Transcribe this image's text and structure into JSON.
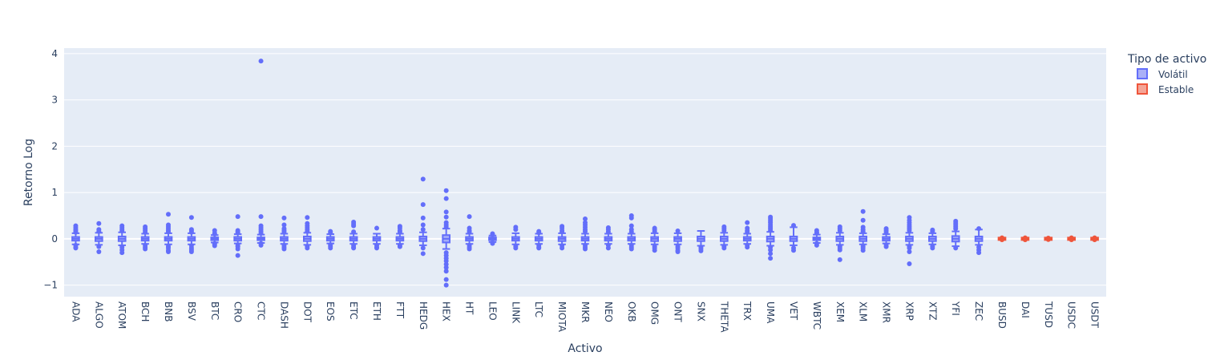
{
  "chart_data": {
    "type": "box",
    "xlabel": "Activo",
    "ylabel": "Retorno Log",
    "ylim": [
      -1.25,
      4.12
    ],
    "yticks": [
      -1,
      0,
      1,
      2,
      3,
      4
    ],
    "ytick_labels": [
      "−1",
      "0",
      "1",
      "2",
      "3",
      "4"
    ],
    "grid": true,
    "legend": {
      "title": "Tipo de activo",
      "placement": "top-right",
      "entries": [
        {
          "name": "Volátil",
          "color": "#636efa"
        },
        {
          "name": "Estable",
          "color": "#ef553b"
        }
      ]
    },
    "categories": [
      "ADA",
      "ALGO",
      "ATOM",
      "BCH",
      "BNB",
      "BSV",
      "BTC",
      "CRO",
      "CTC",
      "DASH",
      "DOT",
      "EOS",
      "ETC",
      "ETH",
      "FTT",
      "HEDG",
      "HEX",
      "HT",
      "LEO",
      "LINK",
      "LTC",
      "MIOTA",
      "MKR",
      "NEO",
      "OKB",
      "OMG",
      "ONT",
      "SNX",
      "THETA",
      "TRX",
      "UMA",
      "VET",
      "WBTC",
      "XEM",
      "XLM",
      "XMR",
      "XRP",
      "XTZ",
      "YFI",
      "ZEC",
      "BUSD",
      "DAI",
      "TUSD",
      "USDC",
      "USDT"
    ],
    "series": [
      {
        "name": "Volátil",
        "color": "#636efa",
        "boxes": [
          {
            "cat": "ADA",
            "q1": -0.04,
            "median": 0.0,
            "q3": 0.04,
            "whisker_low": -0.12,
            "whisker_high": 0.12,
            "outliers": [
              0.28,
              0.24,
              0.2,
              0.17,
              0.14,
              -0.14,
              -0.18,
              -0.2
            ]
          },
          {
            "cat": "ALGO",
            "q1": -0.05,
            "median": 0.0,
            "q3": 0.04,
            "whisker_low": -0.13,
            "whisker_high": 0.13,
            "outliers": [
              0.33,
              0.2,
              0.16,
              -0.17,
              -0.28
            ]
          },
          {
            "cat": "ATOM",
            "q1": -0.05,
            "median": 0.0,
            "q3": 0.05,
            "whisker_low": -0.14,
            "whisker_high": 0.14,
            "outliers": [
              0.28,
              0.24,
              0.2,
              0.17,
              -0.18,
              -0.24,
              -0.3
            ]
          },
          {
            "cat": "BCH",
            "q1": -0.04,
            "median": 0.0,
            "q3": 0.04,
            "whisker_low": -0.11,
            "whisker_high": 0.11,
            "outliers": [
              0.26,
              0.22,
              0.18,
              0.14,
              -0.14,
              -0.18,
              -0.22
            ]
          },
          {
            "cat": "BNB",
            "q1": -0.04,
            "median": 0.0,
            "q3": 0.04,
            "whisker_low": -0.12,
            "whisker_high": 0.12,
            "outliers": [
              0.53,
              0.3,
              0.26,
              0.22,
              0.18,
              0.15,
              -0.16,
              -0.2,
              -0.25,
              -0.28
            ]
          },
          {
            "cat": "BSV",
            "q1": -0.04,
            "median": 0.0,
            "q3": 0.04,
            "whisker_low": -0.12,
            "whisker_high": 0.12,
            "outliers": [
              0.46,
              0.2,
              0.17,
              0.14,
              -0.15,
              -0.2,
              -0.24,
              -0.28
            ]
          },
          {
            "cat": "BTC",
            "q1": -0.03,
            "median": 0.0,
            "q3": 0.03,
            "whisker_low": -0.08,
            "whisker_high": 0.08,
            "outliers": [
              0.18,
              0.12,
              0.1,
              -0.1,
              -0.12,
              -0.15
            ]
          },
          {
            "cat": "CRO",
            "q1": -0.04,
            "median": 0.0,
            "q3": 0.04,
            "whisker_low": -0.1,
            "whisker_high": 0.1,
            "outliers": [
              0.48,
              0.18,
              0.15,
              0.13,
              -0.14,
              -0.17,
              -0.22,
              -0.36
            ]
          },
          {
            "cat": "CTC",
            "q1": -0.03,
            "median": 0.0,
            "q3": 0.03,
            "whisker_low": -0.09,
            "whisker_high": 0.09,
            "outliers": [
              3.84,
              0.48,
              0.28,
              0.24,
              0.2,
              0.16,
              0.12,
              -0.1,
              -0.14
            ]
          },
          {
            "cat": "DASH",
            "q1": -0.04,
            "median": 0.0,
            "q3": 0.04,
            "whisker_low": -0.11,
            "whisker_high": 0.11,
            "outliers": [
              0.45,
              0.3,
              0.22,
              0.18,
              0.15,
              -0.14,
              -0.18,
              -0.22
            ]
          },
          {
            "cat": "DOT",
            "q1": -0.05,
            "median": 0.0,
            "q3": 0.05,
            "whisker_low": -0.13,
            "whisker_high": 0.13,
            "outliers": [
              0.46,
              0.33,
              0.28,
              0.24,
              0.2,
              0.16,
              -0.16,
              -0.2
            ]
          },
          {
            "cat": "EOS",
            "q1": -0.04,
            "median": 0.0,
            "q3": 0.04,
            "whisker_low": -0.1,
            "whisker_high": 0.1,
            "outliers": [
              0.16,
              0.13,
              -0.13,
              -0.16,
              -0.2
            ]
          },
          {
            "cat": "ETC",
            "q1": -0.04,
            "median": 0.0,
            "q3": 0.04,
            "whisker_low": -0.11,
            "whisker_high": 0.11,
            "outliers": [
              0.36,
              0.32,
              0.28,
              0.15,
              -0.14,
              -0.18,
              -0.2
            ]
          },
          {
            "cat": "ETH",
            "q1": -0.04,
            "median": 0.0,
            "q3": 0.04,
            "whisker_low": -0.11,
            "whisker_high": 0.11,
            "outliers": [
              0.23,
              -0.14,
              -0.18,
              -0.2
            ]
          },
          {
            "cat": "FTT",
            "q1": -0.04,
            "median": 0.0,
            "q3": 0.04,
            "whisker_low": -0.11,
            "whisker_high": 0.11,
            "outliers": [
              0.27,
              0.23,
              0.18,
              0.15,
              -0.14,
              -0.17
            ]
          },
          {
            "cat": "HEDG",
            "q1": -0.05,
            "median": 0.0,
            "q3": 0.05,
            "whisker_low": -0.14,
            "whisker_high": 0.14,
            "outliers": [
              1.29,
              0.74,
              0.45,
              0.3,
              0.2,
              -0.2,
              -0.32
            ]
          },
          {
            "cat": "HEX",
            "q1": -0.08,
            "median": 0.0,
            "q3": 0.08,
            "whisker_low": -0.22,
            "whisker_high": 0.22,
            "outliers": [
              1.04,
              0.87,
              0.58,
              0.47,
              0.35,
              0.3,
              0.26,
              -0.3,
              -0.36,
              -0.42,
              -0.48,
              -0.55,
              -0.62,
              -0.7,
              -0.88,
              -1.0
            ]
          },
          {
            "cat": "HT",
            "q1": -0.04,
            "median": 0.0,
            "q3": 0.04,
            "whisker_low": -0.11,
            "whisker_high": 0.11,
            "outliers": [
              0.48,
              0.23,
              0.18,
              0.15,
              -0.14,
              -0.18,
              -0.22
            ]
          },
          {
            "cat": "LEO",
            "q1": -0.03,
            "median": 0.0,
            "q3": 0.03,
            "whisker_low": -0.07,
            "whisker_high": 0.07,
            "outliers": [
              0.11,
              0.09,
              -0.09,
              -0.1
            ]
          },
          {
            "cat": "LINK",
            "q1": -0.04,
            "median": 0.0,
            "q3": 0.04,
            "whisker_low": -0.12,
            "whisker_high": 0.12,
            "outliers": [
              0.25,
              0.2,
              -0.16,
              -0.2
            ]
          },
          {
            "cat": "LTC",
            "q1": -0.04,
            "median": 0.0,
            "q3": 0.04,
            "whisker_low": -0.11,
            "whisker_high": 0.11,
            "outliers": [
              0.16,
              0.13,
              -0.14,
              -0.18,
              -0.2
            ]
          },
          {
            "cat": "MIOTA",
            "q1": -0.05,
            "median": 0.0,
            "q3": 0.04,
            "whisker_low": -0.12,
            "whisker_high": 0.12,
            "outliers": [
              0.27,
              0.23,
              0.18,
              0.15,
              -0.15,
              -0.2
            ]
          },
          {
            "cat": "MKR",
            "q1": -0.04,
            "median": 0.0,
            "q3": 0.04,
            "whisker_low": -0.11,
            "whisker_high": 0.11,
            "outliers": [
              0.43,
              0.35,
              0.3,
              0.25,
              0.2,
              0.16,
              -0.14,
              -0.18,
              -0.22
            ]
          },
          {
            "cat": "NEO",
            "q1": -0.04,
            "median": 0.0,
            "q3": 0.04,
            "whisker_low": -0.11,
            "whisker_high": 0.11,
            "outliers": [
              0.24,
              0.2,
              0.15,
              -0.14,
              -0.2
            ]
          },
          {
            "cat": "OKB",
            "q1": -0.04,
            "median": 0.0,
            "q3": 0.04,
            "whisker_low": -0.11,
            "whisker_high": 0.11,
            "outliers": [
              0.5,
              0.45,
              0.28,
              0.2,
              0.15,
              -0.14,
              -0.18,
              -0.22
            ]
          },
          {
            "cat": "OMG",
            "q1": -0.05,
            "median": 0.0,
            "q3": 0.04,
            "whisker_low": -0.12,
            "whisker_high": 0.12,
            "outliers": [
              0.23,
              0.2,
              0.16,
              -0.16,
              -0.2,
              -0.25
            ]
          },
          {
            "cat": "ONT",
            "q1": -0.05,
            "median": 0.0,
            "q3": 0.04,
            "whisker_low": -0.12,
            "whisker_high": 0.12,
            "outliers": [
              0.17,
              -0.16,
              -0.2,
              -0.25,
              -0.28
            ]
          },
          {
            "cat": "SNX",
            "q1": -0.05,
            "median": 0.0,
            "q3": 0.05,
            "whisker_low": -0.15,
            "whisker_high": 0.17,
            "outliers": [
              -0.18,
              -0.22,
              -0.26
            ]
          },
          {
            "cat": "THETA",
            "q1": -0.05,
            "median": 0.0,
            "q3": 0.05,
            "whisker_low": -0.13,
            "whisker_high": 0.13,
            "outliers": [
              0.26,
              0.22,
              0.18,
              -0.16,
              -0.2
            ]
          },
          {
            "cat": "TRX",
            "q1": -0.04,
            "median": 0.0,
            "q3": 0.04,
            "whisker_low": -0.11,
            "whisker_high": 0.11,
            "outliers": [
              0.35,
              0.23,
              0.18,
              0.15,
              -0.14,
              -0.18
            ]
          },
          {
            "cat": "UMA",
            "q1": -0.06,
            "median": 0.0,
            "q3": 0.05,
            "whisker_low": -0.15,
            "whisker_high": 0.15,
            "outliers": [
              0.47,
              0.43,
              0.39,
              0.35,
              0.3,
              0.26,
              0.22,
              0.18,
              -0.18,
              -0.24,
              -0.32,
              -0.42
            ]
          },
          {
            "cat": "VET",
            "q1": -0.05,
            "median": 0.0,
            "q3": 0.05,
            "whisker_low": -0.14,
            "whisker_high": 0.25,
            "outliers": [
              0.29,
              -0.2,
              -0.25
            ]
          },
          {
            "cat": "WBTC",
            "q1": -0.03,
            "median": 0.0,
            "q3": 0.03,
            "whisker_low": -0.09,
            "whisker_high": 0.09,
            "outliers": [
              0.18,
              0.14,
              0.12,
              -0.1,
              -0.14
            ]
          },
          {
            "cat": "XEM",
            "q1": -0.05,
            "median": 0.0,
            "q3": 0.05,
            "whisker_low": -0.13,
            "whisker_high": 0.13,
            "outliers": [
              0.26,
              0.22,
              0.18,
              -0.16,
              -0.2,
              -0.24,
              -0.45
            ]
          },
          {
            "cat": "XLM",
            "q1": -0.05,
            "median": 0.0,
            "q3": 0.05,
            "whisker_low": -0.12,
            "whisker_high": 0.12,
            "outliers": [
              0.59,
              0.4,
              0.25,
              0.2,
              0.16,
              -0.16,
              -0.2,
              -0.25
            ]
          },
          {
            "cat": "XMR",
            "q1": -0.04,
            "median": 0.0,
            "q3": 0.04,
            "whisker_low": -0.1,
            "whisker_high": 0.1,
            "outliers": [
              0.22,
              0.18,
              0.14,
              -0.13,
              -0.17
            ]
          },
          {
            "cat": "XRP",
            "q1": -0.05,
            "median": 0.0,
            "q3": 0.05,
            "whisker_low": -0.13,
            "whisker_high": 0.13,
            "outliers": [
              0.46,
              0.4,
              0.35,
              0.3,
              0.26,
              0.22,
              0.18,
              -0.16,
              -0.2,
              -0.28,
              -0.54
            ]
          },
          {
            "cat": "XTZ",
            "q1": -0.05,
            "median": 0.0,
            "q3": 0.05,
            "whisker_low": -0.12,
            "whisker_high": 0.12,
            "outliers": [
              0.19,
              0.16,
              -0.16,
              -0.2
            ]
          },
          {
            "cat": "YFI",
            "q1": -0.06,
            "median": 0.0,
            "q3": 0.06,
            "whisker_low": -0.16,
            "whisker_high": 0.16,
            "outliers": [
              0.38,
              0.34,
              0.3,
              0.26,
              0.22,
              -0.2
            ]
          },
          {
            "cat": "ZEC",
            "q1": -0.05,
            "median": 0.0,
            "q3": 0.05,
            "whisker_low": -0.13,
            "whisker_high": 0.2,
            "outliers": [
              0.22,
              -0.18,
              -0.24,
              -0.3
            ]
          }
        ]
      },
      {
        "name": "Estable",
        "color": "#ef553b",
        "boxes": [
          {
            "cat": "BUSD",
            "q1": -0.004,
            "median": 0.0,
            "q3": 0.004,
            "whisker_low": -0.01,
            "whisker_high": 0.01,
            "outliers": [
              0.02,
              0.015,
              -0.015,
              -0.02
            ]
          },
          {
            "cat": "DAI",
            "q1": -0.004,
            "median": 0.0,
            "q3": 0.004,
            "whisker_low": -0.01,
            "whisker_high": 0.01,
            "outliers": [
              0.02,
              0.015,
              -0.015,
              -0.02
            ]
          },
          {
            "cat": "TUSD",
            "q1": -0.004,
            "median": 0.0,
            "q3": 0.004,
            "whisker_low": -0.01,
            "whisker_high": 0.01,
            "outliers": [
              0.015,
              -0.015
            ]
          },
          {
            "cat": "USDC",
            "q1": -0.004,
            "median": 0.0,
            "q3": 0.004,
            "whisker_low": -0.01,
            "whisker_high": 0.01,
            "outliers": [
              0.02,
              0.015,
              -0.015,
              -0.02
            ]
          },
          {
            "cat": "USDT",
            "q1": -0.004,
            "median": 0.0,
            "q3": 0.004,
            "whisker_low": -0.01,
            "whisker_high": 0.01,
            "outliers": [
              0.02,
              0.015,
              -0.015,
              -0.02
            ]
          }
        ]
      }
    ]
  }
}
